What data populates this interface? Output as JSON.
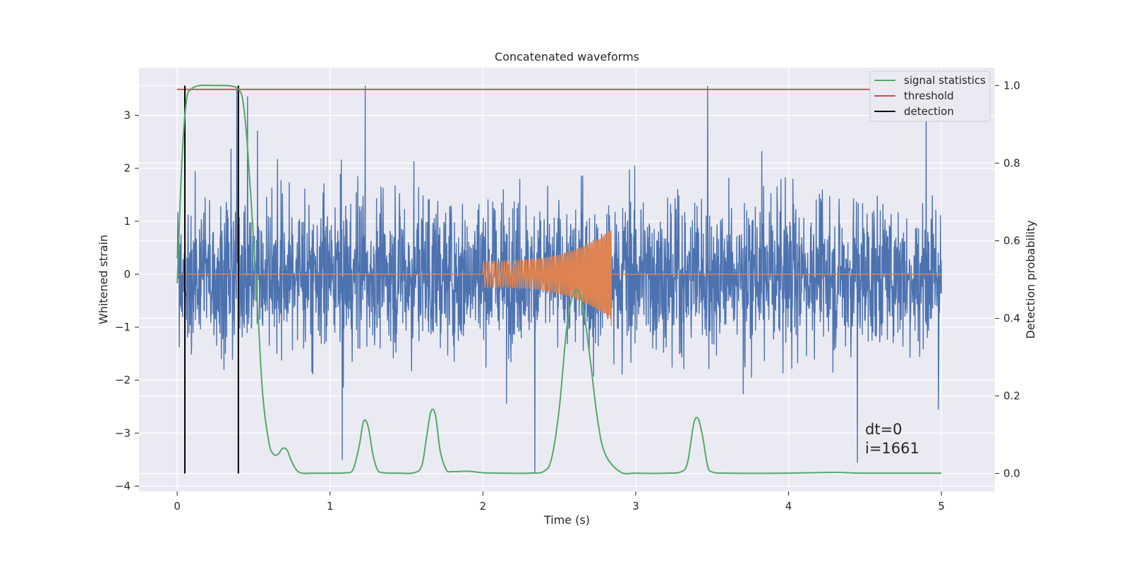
{
  "chart_data": {
    "type": "line",
    "title": "Concatenated waveforms",
    "xlabel": "Time (s)",
    "ylabel": "Whitened strain",
    "ylabel_right": "Detection probability",
    "xlim": [
      -0.25,
      5.35
    ],
    "ylim": [
      -4.1,
      3.9
    ],
    "ylim_right": [
      -0.046,
      1.046
    ],
    "xticks": [
      0,
      1,
      2,
      3,
      4,
      5
    ],
    "yticks": [
      -4,
      -3,
      -2,
      -1,
      0,
      1,
      2,
      3
    ],
    "yticks_right": [
      0.0,
      0.2,
      0.4,
      0.6,
      0.8,
      1.0
    ],
    "xtick_labels": [
      "0",
      "1",
      "2",
      "3",
      "4",
      "5"
    ],
    "ytick_labels": [
      "−4",
      "−3",
      "−2",
      "−1",
      "0",
      "1",
      "2",
      "3"
    ],
    "ytick_right_labels": [
      "0.0",
      "0.2",
      "0.4",
      "0.6",
      "0.8",
      "1.0"
    ],
    "grid": true,
    "legend_position": "top-right",
    "legend": [
      "signal statistics",
      "threshold",
      "detection"
    ],
    "annotations": [
      "dt=0",
      "i=1661"
    ],
    "colors": {
      "background": "#eaeaf2",
      "strain": "#4c72b0",
      "waveform": "#dd8452",
      "signal_statistics": "#55a868",
      "threshold": "#c44e52",
      "detection": "#000000",
      "grid": "#ffffff"
    },
    "series": [
      {
        "name": "",
        "axis": "left",
        "description_kind": "noise",
        "x_range": [
          0,
          5
        ],
        "typical_amplitude": 2.3,
        "spike_points": [
          [
            0.05,
            -2.2
          ],
          [
            0.39,
            3.5
          ],
          [
            0.46,
            3.35
          ],
          [
            1.23,
            3.55
          ],
          [
            1.08,
            -3.5
          ],
          [
            2.34,
            -3.75
          ],
          [
            3.47,
            3.55
          ],
          [
            4.45,
            -3.55
          ],
          [
            4.9,
            3.25
          ],
          [
            4.98,
            -2.55
          ]
        ]
      },
      {
        "name": "",
        "axis": "left",
        "description_kind": "chirp",
        "x_range": [
          2.0,
          2.84
        ],
        "start_amplitude": 0.25,
        "peak_amplitude": 0.85,
        "end_amplitude": -0.98
      },
      {
        "name": "signal statistics",
        "axis": "right",
        "x": [
          0,
          0.03,
          0.06,
          0.09,
          0.15,
          0.25,
          0.35,
          0.4,
          0.43,
          0.46,
          0.5,
          0.53,
          0.56,
          0.6,
          0.63,
          0.66,
          0.69,
          0.72,
          0.75,
          0.8,
          0.9,
          1.0,
          1.1,
          1.15,
          1.19,
          1.22,
          1.25,
          1.28,
          1.31,
          1.35,
          1.45,
          1.55,
          1.6,
          1.63,
          1.66,
          1.69,
          1.72,
          1.76,
          1.8,
          1.9,
          2.0,
          2.1,
          2.3,
          2.4,
          2.45,
          2.5,
          2.55,
          2.6,
          2.65,
          2.7,
          2.75,
          2.8,
          2.9,
          3.0,
          3.2,
          3.3,
          3.34,
          3.38,
          3.41,
          3.44,
          3.47,
          3.5,
          3.6,
          4.0,
          4.3,
          4.5,
          5.0
        ],
        "y": [
          0.49,
          0.8,
          0.96,
          0.99,
          1.0,
          1.0,
          0.999,
          0.99,
          0.96,
          0.84,
          0.6,
          0.4,
          0.2,
          0.08,
          0.05,
          0.05,
          0.065,
          0.06,
          0.03,
          0.003,
          0.001,
          0.001,
          0.002,
          0.01,
          0.07,
          0.135,
          0.12,
          0.05,
          0.01,
          0.002,
          0.001,
          0.002,
          0.02,
          0.09,
          0.16,
          0.15,
          0.06,
          0.01,
          0.005,
          0.006,
          0.002,
          0.001,
          0.001,
          0.006,
          0.04,
          0.17,
          0.38,
          0.47,
          0.44,
          0.3,
          0.14,
          0.05,
          0.004,
          0.001,
          0.001,
          0.005,
          0.03,
          0.13,
          0.14,
          0.09,
          0.02,
          0.004,
          0.001,
          0.001,
          0.003,
          0.001,
          0.001
        ]
      },
      {
        "name": "threshold",
        "axis": "right",
        "x": [
          0,
          5
        ],
        "y": [
          0.99,
          0.99
        ]
      },
      {
        "name": "detection",
        "axis": "right",
        "kind": "vertical_lines",
        "x": [
          0.05,
          0.4
        ],
        "y_range": [
          0,
          1.0
        ]
      }
    ]
  }
}
